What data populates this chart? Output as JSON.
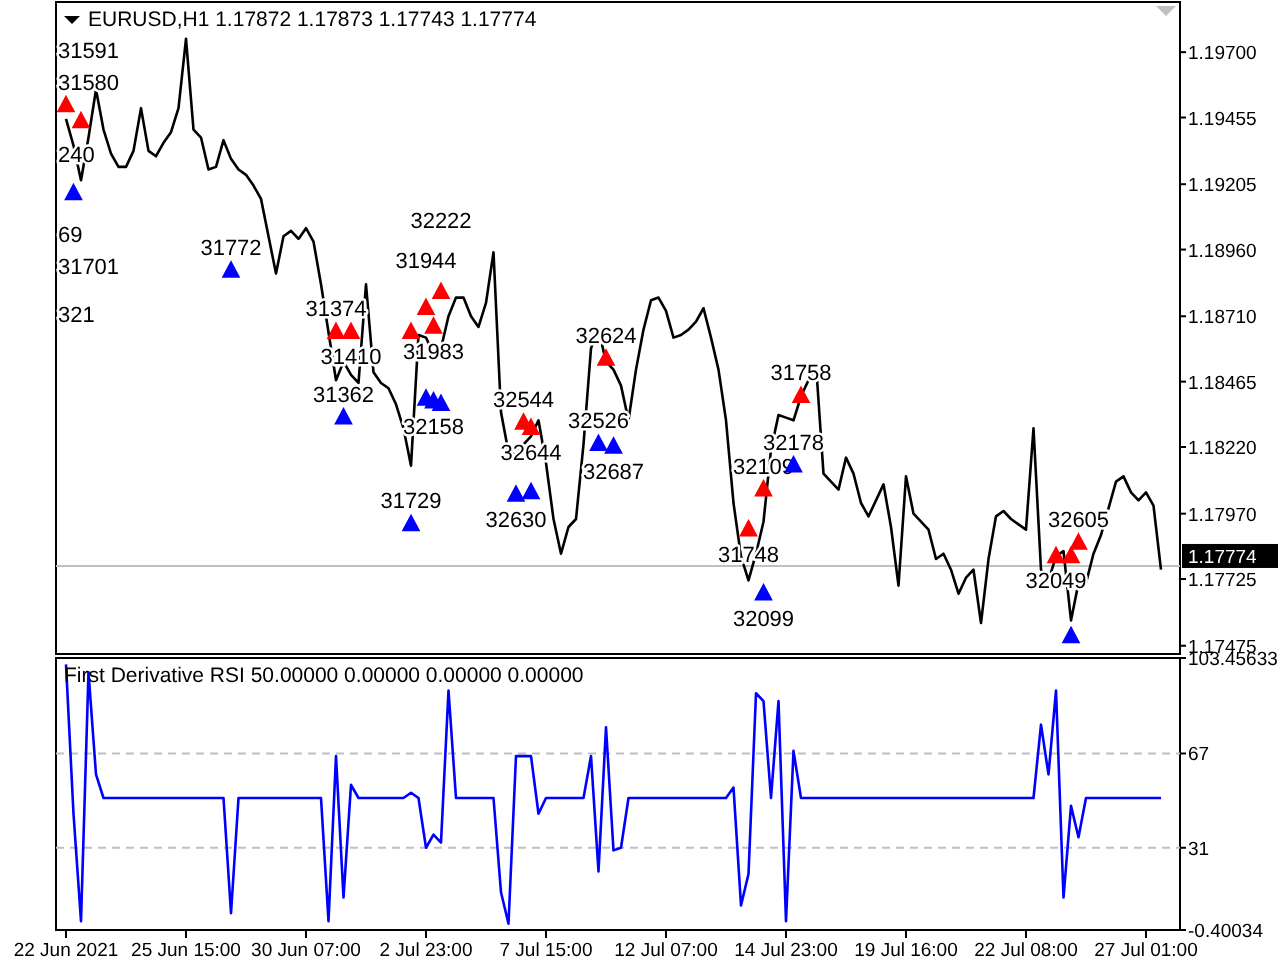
{
  "chart_data": [
    {
      "type": "line",
      "title": "EURUSD,H1  1.17872 1.17873 1.17743 1.17774",
      "categories": [
        null,
        null,
        null,
        null,
        null,
        null,
        null,
        null,
        null,
        null,
        null,
        null,
        null,
        null,
        null,
        null,
        null,
        null,
        null,
        null,
        null,
        null,
        null,
        null,
        null,
        null,
        null,
        null,
        null,
        null,
        null,
        null,
        null,
        null,
        null,
        null,
        null,
        null,
        null,
        null,
        null,
        null,
        null,
        null,
        null,
        null,
        null,
        null,
        null,
        null,
        null,
        null,
        null,
        null,
        null,
        null,
        null,
        null,
        null,
        null,
        null,
        null,
        null,
        null,
        null,
        null,
        null,
        null,
        null,
        null,
        null,
        null,
        null,
        null,
        null,
        null,
        null,
        null,
        null,
        null,
        null,
        null,
        null,
        null,
        null,
        null,
        null,
        null,
        null,
        null,
        null,
        null,
        null,
        null,
        null,
        null,
        null,
        null,
        null,
        null,
        null,
        null,
        null,
        null,
        null,
        null,
        null,
        null,
        null,
        null,
        null,
        null,
        null,
        null,
        null,
        null,
        null,
        null,
        null,
        null,
        null,
        null,
        null,
        null,
        null,
        null,
        null,
        null,
        null,
        null,
        null,
        null,
        null,
        null,
        null,
        null,
        null,
        null,
        null,
        null,
        null,
        null,
        null,
        null,
        null,
        null,
        null,
        null,
        null
      ],
      "ylim": [
        1.17444,
        1.19888
      ],
      "yticks": [
        {
          "value": 1.197,
          "label": "1.19700"
        },
        {
          "value": 1.19455,
          "label": "1.19455"
        },
        {
          "value": 1.19205,
          "label": "1.19205"
        },
        {
          "value": 1.1896,
          "label": "1.18960"
        },
        {
          "value": 1.1871,
          "label": "1.18710"
        },
        {
          "value": 1.18465,
          "label": "1.18465"
        },
        {
          "value": 1.1822,
          "label": "1.18220"
        },
        {
          "value": 1.1797,
          "label": "1.17970"
        },
        {
          "value": 1.17725,
          "label": "1.17725"
        },
        {
          "value": 1.17475,
          "label": "1.17475"
        }
      ],
      "tick_labels": "y",
      "ref_lines": [
        {
          "axis": "y",
          "value": 1.17774,
          "label": "1.17774",
          "color": "#c0c0c0"
        }
      ],
      "series": [
        {
          "color": "#000000",
          "values": [
            1.1945,
            1.1935,
            1.1922,
            1.1938,
            1.1956,
            1.1941,
            1.1932,
            1.1927,
            1.1927,
            1.1933,
            1.1949,
            1.1933,
            1.1931,
            1.1936,
            1.194,
            1.1949,
            1.1975,
            1.1941,
            1.1938,
            1.1926,
            1.1927,
            1.1937,
            1.193,
            1.1926,
            1.1924,
            1.192,
            1.1915,
            1.1901,
            1.1887,
            1.1901,
            1.1903,
            1.19,
            1.1904,
            1.1899,
            1.1883,
            1.1865,
            1.1847,
            1.1854,
            1.1849,
            1.1846,
            1.1883,
            1.185,
            1.1846,
            1.1844,
            1.1838,
            1.1829,
            1.1815,
            1.1864,
            1.1863,
            1.1857,
            1.1859,
            1.1871,
            1.1878,
            1.1878,
            1.1871,
            1.1867,
            1.1876,
            1.1895,
            1.1835,
            1.182,
            1.1819,
            1.1823,
            1.1826,
            1.1832,
            1.1816,
            1.1795,
            1.1782,
            1.1792,
            1.1795,
            1.1823,
            1.1859,
            1.1866,
            1.1854,
            1.1851,
            1.1845,
            1.1832,
            1.1851,
            1.1866,
            1.1877,
            1.1878,
            1.1873,
            1.1863,
            1.1864,
            1.1866,
            1.1869,
            1.1874,
            1.1863,
            1.1851,
            1.1832,
            1.1801,
            1.1781,
            1.1772,
            1.1782,
            1.1794,
            1.1821,
            1.1834,
            1.1833,
            1.1832,
            1.1841,
            1.1847,
            1.1853,
            1.1812,
            1.1809,
            1.1806,
            1.1818,
            1.1812,
            1.1801,
            1.1796,
            1.1802,
            1.1808,
            1.1792,
            1.177,
            1.1811,
            1.1797,
            1.1794,
            1.1791,
            1.178,
            1.1782,
            1.1776,
            1.1767,
            1.1773,
            1.1776,
            1.1756,
            1.178,
            1.1796,
            1.1798,
            1.1795,
            1.1793,
            1.1791,
            1.1829,
            1.1776,
            1.1772,
            1.1781,
            1.1783,
            1.1757,
            1.1771,
            1.1771,
            1.1782,
            1.1789,
            1.1799,
            1.1809,
            1.1811,
            1.1805,
            1.1802,
            1.1805,
            1.18,
            1.1776,
            null,
            null
          ]
        },
        {
          "type": "scatter",
          "marker": "triangle",
          "color": "#0000ff",
          "values": [
            null,
            1.1917,
            null,
            null,
            null,
            null,
            null,
            null,
            null,
            null,
            null,
            null,
            null,
            null,
            null,
            null,
            null,
            null,
            null,
            null,
            null,
            null,
            1.1888,
            null,
            null,
            null,
            null,
            null,
            null,
            null,
            null,
            null,
            null,
            null,
            null,
            null,
            null,
            1.1833,
            null,
            null,
            null,
            null,
            null,
            null,
            null,
            null,
            1.1793,
            null,
            1.184,
            1.1839,
            1.1838,
            null,
            null,
            null,
            null,
            null,
            null,
            null,
            null,
            null,
            1.1804,
            null,
            1.1805,
            null,
            null,
            null,
            null,
            null,
            null,
            null,
            null,
            1.1823,
            null,
            1.1822,
            null,
            null,
            null,
            null,
            null,
            null,
            null,
            null,
            null,
            null,
            null,
            null,
            null,
            null,
            null,
            null,
            null,
            null,
            null,
            1.1767,
            null,
            null,
            null,
            1.1815,
            null,
            null,
            null,
            null,
            null,
            null,
            null,
            null,
            null,
            null,
            null,
            null,
            null,
            null,
            null,
            null,
            null,
            null,
            null,
            null,
            null,
            null,
            null,
            null,
            null,
            null,
            null,
            null,
            null,
            null,
            null,
            null,
            null,
            null,
            null,
            null,
            1.1751,
            null,
            null,
            null,
            null,
            null,
            null,
            null,
            null,
            null,
            null,
            null,
            null,
            null,
            null
          ]
        },
        {
          "type": "scatter",
          "marker": "triangle",
          "color": "#ff0000",
          "values": [
            1.195,
            null,
            1.1944,
            null,
            null,
            null,
            null,
            null,
            null,
            null,
            null,
            null,
            null,
            null,
            null,
            null,
            null,
            null,
            null,
            null,
            null,
            null,
            null,
            null,
            null,
            null,
            null,
            null,
            null,
            null,
            null,
            null,
            null,
            null,
            null,
            null,
            1.1865,
            null,
            1.1865,
            null,
            null,
            null,
            null,
            null,
            null,
            null,
            1.1865,
            null,
            1.1874,
            1.1867,
            1.188,
            null,
            null,
            null,
            null,
            null,
            null,
            null,
            null,
            null,
            null,
            1.1831,
            1.1829,
            null,
            null,
            null,
            null,
            null,
            null,
            null,
            null,
            null,
            1.1855,
            null,
            null,
            null,
            null,
            null,
            null,
            null,
            null,
            null,
            null,
            null,
            null,
            null,
            null,
            null,
            null,
            null,
            null,
            1.1791,
            null,
            1.1806,
            null,
            null,
            null,
            null,
            1.1841,
            null,
            null,
            null,
            null,
            null,
            null,
            null,
            null,
            null,
            null,
            null,
            null,
            null,
            null,
            null,
            null,
            null,
            null,
            null,
            null,
            null,
            null,
            null,
            null,
            null,
            null,
            null,
            null,
            null,
            null,
            null,
            null,
            null,
            1.1781,
            null,
            1.1781,
            1.1786,
            null,
            null,
            null,
            null,
            null,
            null,
            null,
            null,
            null,
            null,
            null,
            null,
            null
          ]
        }
      ],
      "annotations": [
        "240",
        "69",
        "321",
        {
          "text": "31580",
          "y": 1.195
        },
        {
          "text": "31591",
          "y": 1.1944
        },
        {
          "text": "31701",
          "y": 1.1917
        },
        {
          "text": "31772",
          "y": 1.1888
        },
        {
          "text": "31374",
          "y": 1.1865
        },
        {
          "text": "31410",
          "y": 1.1865
        },
        {
          "text": "31362",
          "y": 1.1833
        },
        {
          "text": "31729",
          "y": 1.1793
        },
        {
          "text": "31944",
          "y": 1.1874
        },
        {
          "text": "31983",
          "y": 1.1867
        },
        {
          "text": "32222",
          "y": 1.188
        },
        {
          "text": "32158",
          "y": 1.1839
        },
        {
          "text": "32544",
          "y": 1.1831
        },
        {
          "text": "32644",
          "y": 1.1829
        },
        {
          "text": "32624",
          "y": 1.1855
        },
        {
          "text": "32526",
          "y": 1.1823
        },
        {
          "text": "32687",
          "y": 1.1822
        },
        {
          "text": "32630",
          "y": 1.1804
        },
        {
          "text": "31758",
          "y": 1.1841
        },
        {
          "text": "32178",
          "y": 1.1815
        },
        {
          "text": "31748",
          "y": 1.1791
        },
        {
          "text": "32109",
          "y": 1.1806
        },
        {
          "text": "32099",
          "y": 1.1767
        },
        {
          "text": "32605",
          "y": 1.1786
        },
        {
          "text": "32049",
          "y": 1.1781
        }
      ]
    },
    {
      "type": "line",
      "title": "First Derivative RSI 50.00000 0.00000 0.00000 0.00000",
      "categories": [
        "22 Jun 2021",
        null,
        null,
        null,
        null,
        null,
        null,
        null,
        null,
        null,
        null,
        null,
        null,
        null,
        null,
        null,
        "25 Jun 15:00",
        null,
        null,
        null,
        null,
        null,
        null,
        null,
        null,
        null,
        null,
        null,
        null,
        null,
        null,
        null,
        "30 Jun 07:00",
        null,
        null,
        null,
        null,
        null,
        null,
        null,
        null,
        null,
        null,
        null,
        null,
        null,
        null,
        null,
        "2 Jul 23:00",
        null,
        null,
        null,
        null,
        null,
        null,
        null,
        null,
        null,
        null,
        null,
        null,
        null,
        null,
        null,
        "7 Jul 15:00",
        null,
        null,
        null,
        null,
        null,
        null,
        null,
        null,
        null,
        null,
        null,
        null,
        null,
        null,
        null,
        "12 Jul 07:00",
        null,
        null,
        null,
        null,
        null,
        null,
        null,
        null,
        null,
        null,
        null,
        null,
        null,
        null,
        null,
        "14 Jul 23:00",
        null,
        null,
        null,
        null,
        null,
        null,
        null,
        null,
        null,
        null,
        null,
        null,
        null,
        null,
        null,
        "19 Jul 16:00",
        null,
        null,
        null,
        null,
        null,
        null,
        null,
        null,
        null,
        null,
        null,
        null,
        null,
        null,
        null,
        "22 Jul 08:00",
        null,
        null,
        null,
        null,
        null,
        null,
        null,
        null,
        null,
        null,
        null,
        null,
        null,
        null,
        null,
        "27 Jul 01:00",
        null,
        null,
        null,
        null
      ],
      "ylim": [
        -0.40034,
        103.45633
      ],
      "yticks": [
        103.45633,
        67,
        31,
        -0.40034
      ],
      "ref_lines": [
        {
          "axis": "y",
          "value": 67,
          "color": "#c0c0c0",
          "line_style": "dashed"
        },
        {
          "axis": "y",
          "value": 31,
          "color": "#c0c0c0",
          "line_style": "dashed"
        }
      ],
      "series": [
        {
          "color": "#0000ff",
          "values": [
            101,
            44,
            3,
            98,
            59,
            50,
            50,
            50,
            50,
            50,
            50,
            50,
            50,
            50,
            50,
            50,
            50,
            50,
            50,
            50,
            50,
            50,
            6,
            50,
            50,
            50,
            50,
            50,
            50,
            50,
            50,
            50,
            50,
            50,
            50,
            3,
            66,
            12,
            55,
            50,
            50,
            50,
            50,
            50,
            50,
            50,
            52,
            50,
            31,
            36,
            33,
            91,
            50,
            50,
            50,
            50,
            50,
            50,
            14,
            2,
            66,
            66,
            66,
            44,
            50,
            50,
            50,
            50,
            50,
            50,
            66,
            22,
            77,
            30,
            31,
            50,
            50,
            50,
            50,
            50,
            50,
            50,
            50,
            50,
            50,
            50,
            50,
            50,
            50,
            54,
            9,
            21,
            90,
            87,
            50,
            87,
            3,
            68,
            50,
            50,
            50,
            50,
            50,
            50,
            50,
            50,
            50,
            50,
            50,
            50,
            50,
            50,
            50,
            50,
            50,
            50,
            50,
            50,
            50,
            50,
            50,
            50,
            50,
            50,
            50,
            50,
            50,
            50,
            50,
            50,
            78,
            59,
            91,
            12,
            47,
            35,
            50,
            50,
            50,
            50,
            50,
            50,
            50,
            50,
            50,
            50,
            50,
            null,
            null
          ]
        }
      ]
    }
  ]
}
